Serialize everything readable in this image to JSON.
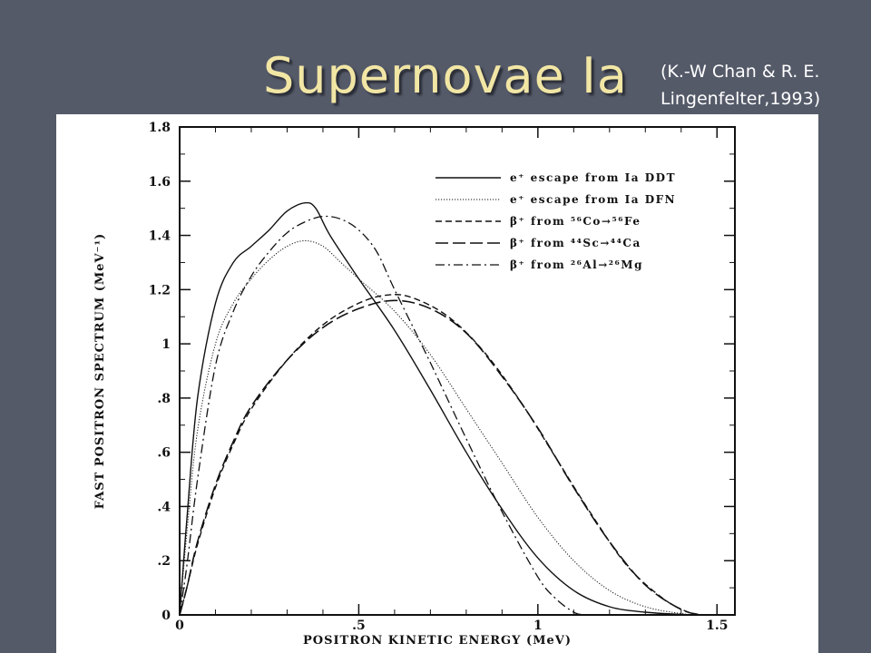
{
  "slide": {
    "title": "Supernovae Ia",
    "citation_line1": "(K.-W Chan & R. E.",
    "citation_line2": "Lingenfelter,1993)"
  },
  "chart_data": {
    "type": "line",
    "xlabel": "POSITRON KINETIC ENERGY (MeV)",
    "ylabel": "FAST POSITRON SPECTRUM (MeV⁻¹)",
    "xlim": [
      0,
      1.55
    ],
    "ylim": [
      0,
      1.8
    ],
    "x_ticks": [
      {
        "value": 0,
        "label": "0"
      },
      {
        "value": 0.5,
        "label": ".5"
      },
      {
        "value": 1.0,
        "label": "1"
      },
      {
        "value": 1.5,
        "label": "1.5"
      }
    ],
    "y_ticks": [
      {
        "value": 0,
        "label": "0"
      },
      {
        "value": 0.2,
        "label": ".2"
      },
      {
        "value": 0.4,
        "label": ".4"
      },
      {
        "value": 0.6,
        "label": ".6"
      },
      {
        "value": 0.8,
        "label": ".8"
      },
      {
        "value": 1.0,
        "label": "1"
      },
      {
        "value": 1.2,
        "label": "1.2"
      },
      {
        "value": 1.4,
        "label": "1.4"
      },
      {
        "value": 1.6,
        "label": "1.6"
      },
      {
        "value": 1.8,
        "label": "1.8"
      }
    ],
    "legend_position": "top-right",
    "series": [
      {
        "name": "e⁺ escape from Ia DDT",
        "dash": "solid",
        "x": [
          0,
          0.02,
          0.05,
          0.1,
          0.15,
          0.2,
          0.25,
          0.3,
          0.35,
          0.38,
          0.42,
          0.5,
          0.6,
          0.7,
          0.8,
          0.9,
          1.0,
          1.1,
          1.2,
          1.3,
          1.4,
          1.45
        ],
        "y": [
          0,
          0.35,
          0.8,
          1.15,
          1.3,
          1.36,
          1.42,
          1.49,
          1.52,
          1.5,
          1.4,
          1.24,
          1.05,
          0.83,
          0.6,
          0.39,
          0.21,
          0.09,
          0.03,
          0.01,
          0.002,
          0
        ]
      },
      {
        "name": "e⁺ escape from Ia DFN",
        "dash": "dotted",
        "x": [
          0,
          0.02,
          0.05,
          0.1,
          0.15,
          0.2,
          0.25,
          0.3,
          0.35,
          0.4,
          0.45,
          0.5,
          0.6,
          0.7,
          0.8,
          0.9,
          1.0,
          1.1,
          1.2,
          1.3,
          1.4,
          1.45
        ],
        "y": [
          0,
          0.3,
          0.68,
          1.0,
          1.15,
          1.24,
          1.31,
          1.36,
          1.38,
          1.36,
          1.3,
          1.24,
          1.12,
          0.96,
          0.76,
          0.56,
          0.36,
          0.2,
          0.09,
          0.03,
          0.005,
          0
        ]
      },
      {
        "name": "β⁺ from ⁵⁶Co→⁵⁶Fe",
        "dash": "short-dash",
        "x": [
          0,
          0.02,
          0.05,
          0.1,
          0.15,
          0.2,
          0.3,
          0.4,
          0.5,
          0.58,
          0.65,
          0.75,
          0.85,
          0.95,
          1.05,
          1.15,
          1.25,
          1.35,
          1.42,
          1.46
        ],
        "y": [
          0,
          0.1,
          0.26,
          0.47,
          0.63,
          0.76,
          0.94,
          1.07,
          1.15,
          1.18,
          1.17,
          1.1,
          0.97,
          0.79,
          0.58,
          0.37,
          0.18,
          0.06,
          0.01,
          0
        ]
      },
      {
        "name": "β⁺ from ⁴⁴Sc→⁴⁴Ca",
        "dash": "long-dash",
        "x": [
          0,
          0.02,
          0.05,
          0.1,
          0.15,
          0.2,
          0.3,
          0.4,
          0.5,
          0.6,
          0.7,
          0.8,
          0.9,
          1.0,
          1.1,
          1.2,
          1.3,
          1.4,
          1.46
        ],
        "y": [
          0,
          0.1,
          0.27,
          0.48,
          0.64,
          0.77,
          0.94,
          1.06,
          1.13,
          1.16,
          1.13,
          1.04,
          0.88,
          0.69,
          0.47,
          0.27,
          0.11,
          0.02,
          0
        ]
      },
      {
        "name": "β⁺ from ²⁶Al→²⁶Mg",
        "dash": "dash-dot",
        "x": [
          0,
          0.02,
          0.05,
          0.1,
          0.15,
          0.2,
          0.25,
          0.3,
          0.35,
          0.4,
          0.45,
          0.5,
          0.55,
          0.6,
          0.7,
          0.8,
          0.9,
          1.0,
          1.05,
          1.1,
          1.13
        ],
        "y": [
          0,
          0.18,
          0.5,
          0.92,
          1.12,
          1.25,
          1.34,
          1.41,
          1.45,
          1.47,
          1.46,
          1.42,
          1.34,
          1.2,
          0.93,
          0.65,
          0.38,
          0.14,
          0.06,
          0.01,
          0
        ]
      }
    ]
  }
}
